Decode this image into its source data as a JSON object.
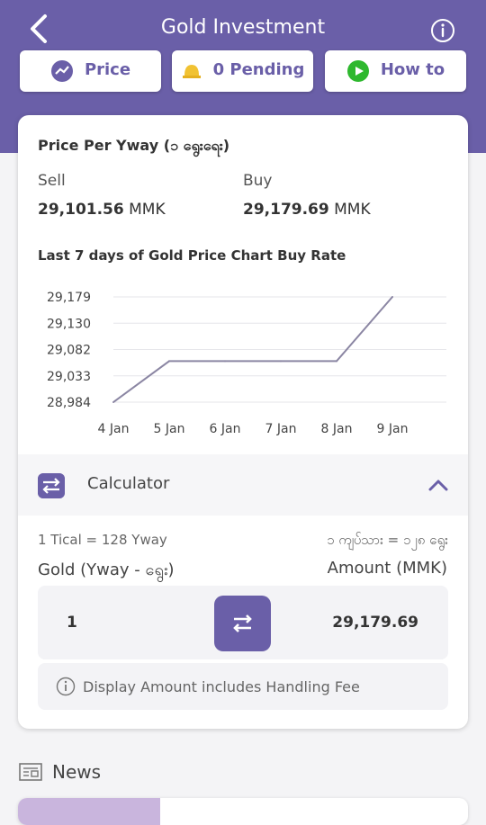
{
  "header": {
    "title": "Gold Investment",
    "back_icon": "back-arrow-icon",
    "info_icon": "info-icon"
  },
  "quick_actions": [
    {
      "label": "Price",
      "icon": "trend-icon"
    },
    {
      "label": "0 Pending",
      "icon": "bell-icon"
    },
    {
      "label": "How to",
      "icon": "play-icon"
    }
  ],
  "price": {
    "title": "Price Per Yway (၁ ရွေးရေး)",
    "sell_label": "Sell",
    "buy_label": "Buy",
    "sell_value": "29,101.56",
    "buy_value": "29,179.69",
    "currency": "MMK"
  },
  "chart_data": {
    "type": "line",
    "title": "Last 7 days of Gold Price Chart Buy Rate",
    "categories": [
      "4 Jan",
      "5 Jan",
      "6 Jan",
      "7 Jan",
      "8 Jan",
      "9 Jan"
    ],
    "values": [
      28984,
      29060,
      29060,
      29060,
      29060,
      29179
    ],
    "y_ticks": [
      "29,179",
      "29,130",
      "29,082",
      "29,033",
      "28,984"
    ],
    "ylim": [
      28984,
      29179
    ],
    "grid": true,
    "line_color": "#8b86a3"
  },
  "calculator": {
    "label": "Calculator",
    "icon": "swap-icon",
    "toggle_icon": "chevron-up-icon",
    "rate_note_en": "1 Tical = 128 Yway",
    "rate_note_mm": "၁ ကျပ်သား = ၁၂၈ ရွေး",
    "left_header": "Gold (Yway - ရွေး)",
    "right_header": "Amount (MMK)",
    "quantity": "1",
    "amount": "29,179.69",
    "note": "Display Amount includes Handling Fee",
    "accent": "#6a5fa8"
  },
  "news": {
    "label": "News",
    "icon": "newspaper-icon"
  }
}
